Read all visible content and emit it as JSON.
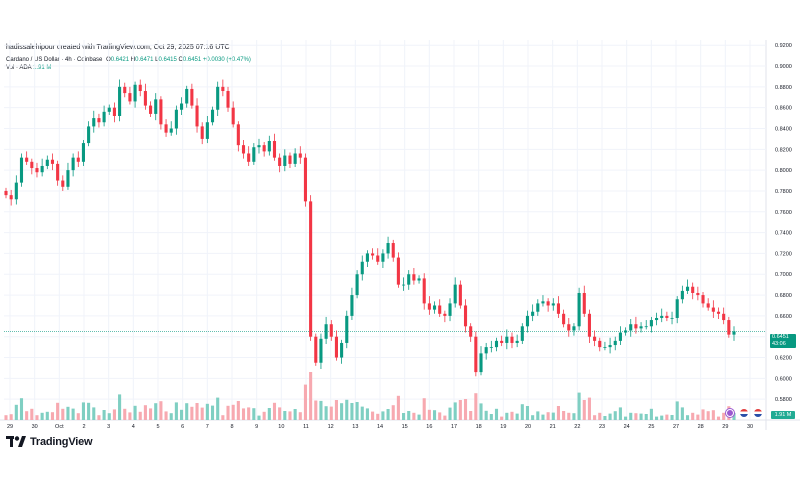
{
  "header": {
    "credit": "hadissalehipour created with TradingView.com, Oct 29, 2025 07:16 UTC",
    "symbol": "Cardano / US Dollar · 4h · Coinbase",
    "open_label": "O",
    "open": "0.6421",
    "high_label": "H",
    "high": "0.6471",
    "low_label": "L",
    "low": "0.6415",
    "close_label": "C",
    "close": "0.6451",
    "change": "+0.0030 (+0.47%)",
    "volume_label": "Vol · ADA",
    "volume": "1.91 M"
  },
  "price_scale": {
    "current_price": "0.6451",
    "countdown": "43:06",
    "volume_tag": "1.91 M"
  },
  "brand": {
    "name": "TradingView"
  },
  "colors": {
    "up": "#089981",
    "down": "#f23645",
    "up_vol": "#7fcfc2",
    "down_vol": "#f7a9b0",
    "grid": "#f0f3fa",
    "last": "#089981"
  },
  "chart_data": {
    "type": "candlestick",
    "title": "Cardano / US Dollar · 4h · Coinbase",
    "ylim": [
      0.56,
      0.925
    ],
    "y_ticks": [
      "0.9200",
      "0.9000",
      "0.8800",
      "0.8600",
      "0.8400",
      "0.8200",
      "0.8000",
      "0.7800",
      "0.7600",
      "0.7400",
      "0.7200",
      "0.7000",
      "0.6800",
      "0.6600",
      "0.6400",
      "0.6200",
      "0.6000",
      "0.5800"
    ],
    "x_ticks": [
      "29",
      "30",
      "Oct",
      "2",
      "3",
      "4",
      "5",
      "6",
      "7",
      "8",
      "9",
      "10",
      "11",
      "12",
      "13",
      "14",
      "15",
      "16",
      "17",
      "18",
      "19",
      "20",
      "21",
      "22",
      "23",
      "24",
      "25",
      "27",
      "28",
      "29",
      "30"
    ],
    "last_price": 0.6451,
    "close_series": [
      0.776,
      0.772,
      0.788,
      0.812,
      0.808,
      0.802,
      0.798,
      0.804,
      0.81,
      0.806,
      0.79,
      0.784,
      0.8,
      0.812,
      0.808,
      0.826,
      0.842,
      0.85,
      0.846,
      0.856,
      0.86,
      0.852,
      0.88,
      0.874,
      0.866,
      0.882,
      0.876,
      0.862,
      0.854,
      0.868,
      0.844,
      0.836,
      0.84,
      0.858,
      0.864,
      0.878,
      0.862,
      0.842,
      0.83,
      0.846,
      0.858,
      0.88,
      0.876,
      0.86,
      0.844,
      0.824,
      0.816,
      0.808,
      0.822,
      0.824,
      0.818,
      0.828,
      0.812,
      0.804,
      0.814,
      0.806,
      0.816,
      0.812,
      0.77,
      0.64,
      0.615,
      0.638,
      0.652,
      0.64,
      0.62,
      0.634,
      0.66,
      0.68,
      0.7,
      0.712,
      0.72,
      0.718,
      0.712,
      0.72,
      0.73,
      0.716,
      0.69,
      0.69,
      0.7,
      0.694,
      0.696,
      0.672,
      0.666,
      0.67,
      0.662,
      0.66,
      0.672,
      0.69,
      0.67,
      0.65,
      0.64,
      0.606,
      0.624,
      0.63,
      0.63,
      0.636,
      0.634,
      0.64,
      0.634,
      0.636,
      0.65,
      0.66,
      0.664,
      0.672,
      0.674,
      0.67,
      0.672,
      0.662,
      0.652,
      0.646,
      0.65,
      0.682,
      0.662,
      0.64,
      0.636,
      0.63,
      0.63,
      0.632,
      0.636,
      0.644,
      0.646,
      0.652,
      0.648,
      0.65,
      0.65,
      0.656,
      0.658,
      0.66,
      0.658,
      0.658,
      0.676,
      0.684,
      0.688,
      0.682,
      0.68,
      0.672,
      0.668,
      0.664,
      0.662,
      0.656,
      0.642,
      0.645
    ]
  }
}
